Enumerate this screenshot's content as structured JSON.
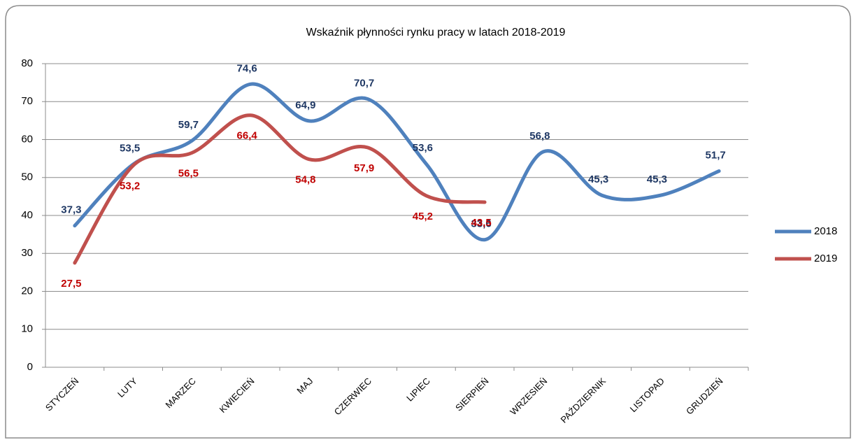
{
  "chart_data": {
    "type": "line",
    "title": "Wskaźnik płynności rynku pracy w latach 2018-2019",
    "categories": [
      "STYCZEŃ",
      "LUTY",
      "MARZEC",
      "KWIECIEŃ",
      "MAJ",
      "CZERWIEC",
      "LIPIEC",
      "SIERPIEŃ",
      "WRZESIEŃ",
      "PAŹDZIERNIK",
      "LISTOPAD",
      "GRUDZIEŃ"
    ],
    "series": [
      {
        "name": "2018",
        "color": "#4f81bd",
        "label_color": "#1f3864",
        "values": [
          37.3,
          53.5,
          59.7,
          74.6,
          64.9,
          70.7,
          53.6,
          33.6,
          56.8,
          45.3,
          45.3,
          51.7
        ],
        "value_labels": [
          "37,3",
          "53,5",
          "59,7",
          "74,6",
          "64,9",
          "70,7",
          "53,6",
          "33,6",
          "56,8",
          "45,3",
          "45,3",
          "51,7"
        ]
      },
      {
        "name": "2019",
        "color": "#c0504d",
        "label_color": "#c00000",
        "values": [
          27.5,
          53.2,
          56.5,
          66.4,
          54.8,
          57.9,
          45.2,
          43.5,
          null,
          null,
          null,
          null
        ],
        "value_labels": [
          "27,5",
          "53,2",
          "56,5",
          "66,4",
          "54,8",
          "57,9",
          "45,2",
          "43,5",
          null,
          null,
          null,
          null
        ]
      }
    ],
    "ylim": [
      0,
      80
    ],
    "yticks": [
      0,
      10,
      20,
      30,
      40,
      50,
      60,
      70,
      80
    ],
    "grid": true,
    "smooth": true,
    "legend": "right"
  }
}
